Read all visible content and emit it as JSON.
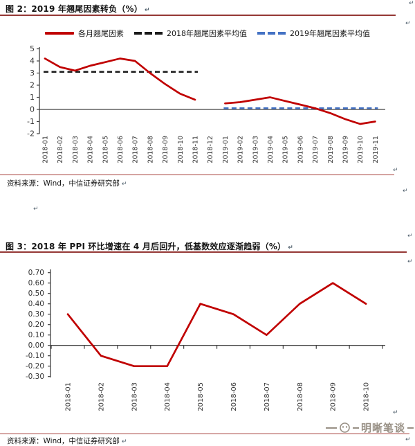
{
  "page": {
    "pilcrow": "↵",
    "background": "#ffffff"
  },
  "figure2": {
    "title": "图 2：2019 年翘尾因素转负（%）",
    "source": "资料来源：Wind，中信证券研究部",
    "legend": [
      {
        "label": "各月翘尾因素",
        "style": "solid",
        "color": "#C00000"
      },
      {
        "label": "2018年翘尾因素平均值",
        "style": "dashed",
        "color": "#1a1a1a"
      },
      {
        "label": "2019年翘尾因素平均值",
        "style": "dashed",
        "color": "#4472C4"
      }
    ]
  },
  "figure3": {
    "title": "图 3：2018 年 PPI 环比增速在 4 月后回升，低基数效应逐渐趋弱（%）",
    "source": "资料来源：Wind，中信证券研究部"
  },
  "watermark": {
    "text": "明晰笔谈",
    "color": "#8d8478"
  },
  "chart_data": [
    {
      "type": "line",
      "title": "图 2：2019 年翘尾因素转负（%）",
      "categories": [
        "2018-01",
        "2018-02",
        "2018-03",
        "2018-04",
        "2018-05",
        "2018-06",
        "2018-07",
        "2018-08",
        "2018-09",
        "2018-10",
        "2018-11",
        "2018-12",
        "2019-01",
        "2019-02",
        "2019-03",
        "2019-04",
        "2019-05",
        "2019-06",
        "2019-07",
        "2019-08",
        "2019-09",
        "2019-10",
        "2019-11"
      ],
      "series": [
        {
          "name": "各月翘尾因素",
          "color": "#C00000",
          "style": "solid",
          "values": [
            4.2,
            3.5,
            3.2,
            3.6,
            3.9,
            4.2,
            4.0,
            3.0,
            2.1,
            1.3,
            0.8,
            null,
            0.5,
            0.6,
            0.8,
            1.0,
            0.7,
            0.4,
            0.1,
            -0.3,
            -0.8,
            -1.2,
            -1.0
          ]
        },
        {
          "name": "2018年翘尾因素平均值",
          "color": "#1a1a1a",
          "style": "dashed",
          "value": 3.1,
          "span": [
            "2018-01",
            "2018-11"
          ]
        },
        {
          "name": "2019年翘尾因素平均值",
          "color": "#4472C4",
          "style": "dashed",
          "value": 0.1,
          "span": [
            "2019-01",
            "2019-11"
          ]
        }
      ],
      "ylim": [
        -2,
        5
      ],
      "yticks": [
        5,
        4,
        3,
        2,
        1,
        0,
        -1,
        -2
      ],
      "ytick_labels": [
        "5",
        "4",
        "3",
        "2",
        "1",
        "0",
        "-1",
        "-2"
      ],
      "grid": false,
      "legend_position": "top"
    },
    {
      "type": "line",
      "title": "图 3：2018 年 PPI 环比增速在 4 月后回升，低基数效应逐渐趋弱（%）",
      "categories": [
        "2018-01",
        "2018-02",
        "2018-03",
        "2018-04",
        "2018-05",
        "2018-06",
        "2018-07",
        "2018-08",
        "2018-09",
        "2018-10"
      ],
      "series": [
        {
          "name": "PPI环比增速",
          "color": "#C00000",
          "style": "solid",
          "values": [
            0.3,
            -0.1,
            -0.2,
            -0.2,
            0.4,
            0.3,
            0.1,
            0.4,
            0.6,
            0.4
          ]
        }
      ],
      "ylim": [
        -0.3,
        0.7
      ],
      "yticks": [
        0.7,
        0.6,
        0.5,
        0.4,
        0.3,
        0.2,
        0.1,
        0.0,
        -0.1,
        -0.2,
        -0.3
      ],
      "ytick_labels": [
        "0.70",
        "0.60",
        "0.50",
        "0.40",
        "0.30",
        "0.20",
        "0.10",
        "0.00",
        "-0.10",
        "-0.20",
        "-0.30"
      ],
      "grid": false,
      "legend_position": "none"
    }
  ]
}
